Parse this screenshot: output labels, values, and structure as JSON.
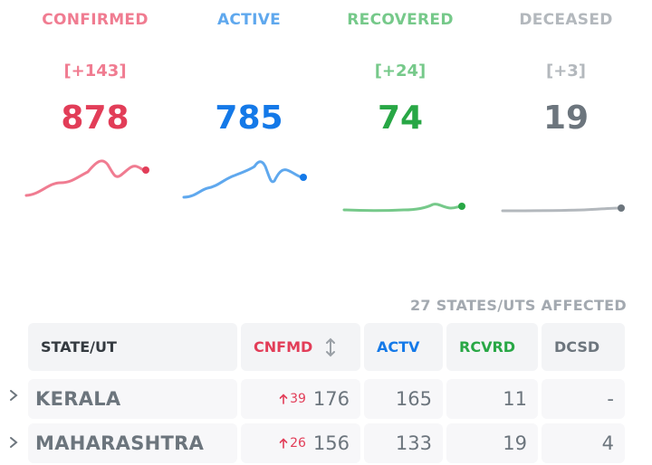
{
  "stats": {
    "confirmed": {
      "label": "CONFIRMED",
      "delta": "[+143]",
      "total": "878",
      "color": "#e23d58",
      "label_color": "#f07c91"
    },
    "active": {
      "label": "ACTIVE",
      "delta": "",
      "total": "785",
      "color": "#1479e8",
      "label_color": "#5fa8ee"
    },
    "recovered": {
      "label": "RECOVERED",
      "delta": "[+24]",
      "total": "74",
      "color": "#28a745",
      "label_color": "#76c98a"
    },
    "deceased": {
      "label": "DECEASED",
      "delta": "[+3]",
      "total": "19",
      "color": "#6c757d",
      "label_color": "#b3b8bd"
    }
  },
  "affected_text": "27 STATES/UTS AFFECTED",
  "table": {
    "headers": {
      "state": "STATE/UT",
      "confirmed": "CNFMD",
      "active": "ACTV",
      "recovered": "RCVRD",
      "deceased": "DCSD"
    },
    "sort_icon": "sort-arrows-icon",
    "rows": [
      {
        "state": "KERALA",
        "confirmed_delta": "39",
        "confirmed": "176",
        "active": "165",
        "recovered": "11",
        "deceased": "-"
      },
      {
        "state": "MAHARASHTRA",
        "confirmed_delta": "26",
        "confirmed": "156",
        "active": "133",
        "recovered": "19",
        "deceased": "4"
      }
    ]
  }
}
